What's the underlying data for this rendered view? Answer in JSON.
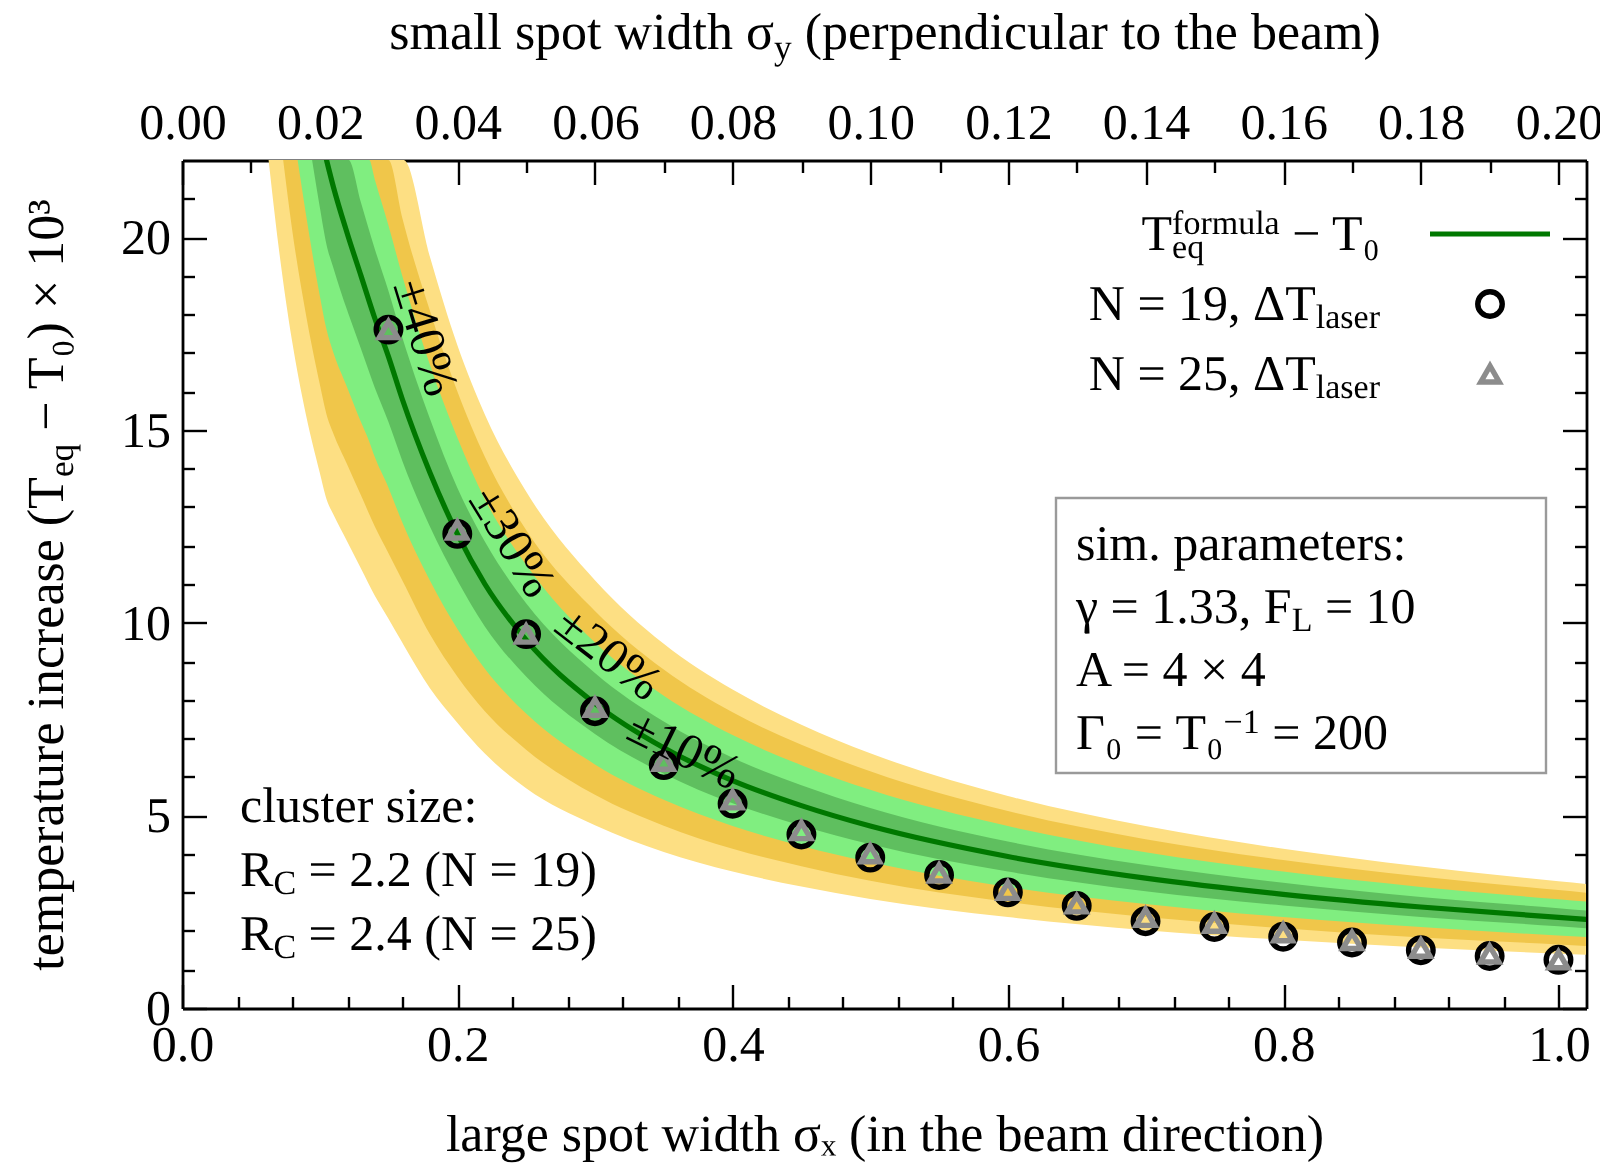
{
  "chart_data": {
    "type": "line",
    "xlabel": "large spot width σₓ (in the beam direction)",
    "x2label": "small spot width σ$_{y}$ (perpendicular to the beam)",
    "ylabel": "temperature increase (T$_{eq}$ − T₀) × 10³",
    "xlim": [
      0,
      1.02
    ],
    "ylim": [
      0,
      22
    ],
    "x2lim": [
      0,
      0.204
    ],
    "xticks": [
      {
        "value": 0,
        "label": "0.0"
      },
      {
        "value": 0.04,
        "label": null
      },
      {
        "value": 0.08,
        "label": null
      },
      {
        "value": 0.12,
        "label": null
      },
      {
        "value": 0.16,
        "label": null
      },
      0.2,
      {
        "value": 0.24,
        "label": null
      },
      {
        "value": 0.28,
        "label": null
      },
      {
        "value": 0.32,
        "label": null
      },
      {
        "value": 0.36,
        "label": null
      },
      0.4,
      {
        "value": 0.44,
        "label": null
      },
      {
        "value": 0.48,
        "label": null
      },
      {
        "value": 0.52,
        "label": null
      },
      {
        "value": 0.56,
        "label": null
      },
      0.6,
      {
        "value": 0.64,
        "label": null
      },
      {
        "value": 0.68,
        "label": null
      },
      {
        "value": 0.72,
        "label": null
      },
      {
        "value": 0.76,
        "label": null
      },
      0.8,
      {
        "value": 0.84,
        "label": null
      },
      {
        "value": 0.88,
        "label": null
      },
      {
        "value": 0.92,
        "label": null
      },
      {
        "value": 0.96,
        "label": null
      },
      {
        "value": 1,
        "label": "1.0"
      }
    ],
    "x2ticks": [
      {
        "value": 0,
        "label": "0.00"
      },
      {
        "value": 0.01,
        "label": null
      },
      0.02,
      {
        "value": 0.03,
        "label": null
      },
      0.04,
      {
        "value": 0.05,
        "label": null
      },
      0.06,
      {
        "value": 0.07,
        "label": null
      },
      0.08,
      {
        "value": 0.09,
        "label": null
      },
      {
        "value": 0.1,
        "label": "0.10"
      },
      {
        "value": 0.11,
        "label": null
      },
      0.12,
      {
        "value": 0.13,
        "label": null
      },
      0.14,
      {
        "value": 0.15,
        "label": null
      },
      0.16,
      {
        "value": 0.17,
        "label": null
      },
      0.18,
      {
        "value": 0.19,
        "label": null
      },
      {
        "value": 0.2,
        "label": "0.20"
      }
    ],
    "yticks": [
      0,
      {
        "value": 1,
        "label": null
      },
      {
        "value": 2,
        "label": null
      },
      {
        "value": 3,
        "label": null
      },
      {
        "value": 4,
        "label": null
      },
      5,
      {
        "value": 6,
        "label": null
      },
      {
        "value": 7,
        "label": null
      },
      {
        "value": 8,
        "label": null
      },
      {
        "value": 9,
        "label": null
      },
      10,
      {
        "value": 11,
        "label": null
      },
      {
        "value": 12,
        "label": null
      },
      {
        "value": 13,
        "label": null
      },
      {
        "value": 14,
        "label": null
      },
      15,
      {
        "value": 16,
        "label": null
      },
      {
        "value": 17,
        "label": null
      },
      {
        "value": 18,
        "label": null
      },
      {
        "value": 19,
        "label": null
      },
      20,
      {
        "value": 21,
        "label": null
      }
    ],
    "legend": "top right",
    "series": [
      {
        "color": "#fddf83",
        "x": [
          0.0629,
          0.07,
          0.08,
          0.09,
          0.1,
          0.105,
          0.11,
          0.12,
          0.13,
          0.14,
          0.15,
          0.16,
          0.161,
          0.18,
          0.2,
          0.22,
          0.25,
          0.3,
          0.35,
          0.4,
          0.45,
          0.5,
          0.6,
          0.7,
          0.8,
          0.9,
          1.0,
          1.02
        ],
        "values": [
          null,
          null,
          null,
          null,
          null,
          null,
          null,
          null,
          null,
          null,
          null,
          null,
          null,
          null,
          null,
          null,
          null,
          null,
          null,
          null,
          null,
          null,
          null,
          null,
          null,
          null,
          null,
          null
        ],
        "lower": [
          22.0,
          19.8,
          17.3,
          15.4,
          13.9,
          13.2,
          12.8,
          12.1,
          11.4,
          10.7,
          10.1,
          9.48,
          9.42,
          8.3,
          7.4,
          6.6,
          5.7,
          4.74,
          4.05,
          3.54,
          3.15,
          2.83,
          2.36,
          2.02,
          1.77,
          1.57,
          1.41,
          1.38
        ],
        "upper": [
          22,
          22,
          22,
          22,
          22,
          22,
          22,
          22,
          22,
          22,
          22,
          22,
          22,
          19.5,
          17.2,
          15.4,
          13.4,
          11.1,
          9.45,
          8.26,
          7.35,
          6.61,
          5.5,
          4.72,
          4.13,
          3.67,
          3.29,
          3.22
        ]
      },
      {
        "color": "#f0c64a",
        "x": [
          0.0735,
          0.08,
          0.09,
          0.1,
          0.105,
          0.11,
          0.12,
          0.13,
          0.14,
          0.15,
          0.16,
          0.18,
          0.2,
          0.22,
          0.25,
          0.3,
          0.35,
          0.4,
          0.45,
          0.5,
          0.6,
          0.7,
          0.8,
          0.9,
          1.0,
          1.02
        ],
        "values": [
          null,
          null,
          null,
          null,
          null,
          null,
          null,
          null,
          null,
          null,
          null,
          null,
          null,
          null,
          null,
          null,
          null,
          null,
          null,
          null,
          null,
          null,
          null,
          null,
          null,
          null
        ],
        "lower": [
          22.0,
          20.2,
          18.0,
          16.2,
          15.4,
          14.9,
          14.1,
          13.3,
          12.5,
          11.8,
          11.1,
          9.7,
          8.6,
          7.7,
          6.7,
          5.53,
          4.73,
          4.13,
          3.68,
          3.3,
          2.75,
          2.36,
          2.07,
          1.83,
          1.65,
          1.61
        ],
        "upper": [
          22,
          22,
          22,
          22,
          22,
          22,
          22,
          22,
          22,
          22,
          20.5,
          18.1,
          16.0,
          14.3,
          12.4,
          10.3,
          8.78,
          7.67,
          6.83,
          6.14,
          5.11,
          4.38,
          3.84,
          3.41,
          3.06,
          2.99
        ]
      },
      {
        "color": "#80ee80",
        "x": [
          0.084,
          0.09,
          0.1,
          0.105,
          0.11,
          0.12,
          0.13,
          0.136,
          0.14,
          0.15,
          0.16,
          0.18,
          0.2,
          0.22,
          0.25,
          0.3,
          0.35,
          0.4,
          0.45,
          0.5,
          0.6,
          0.7,
          0.8,
          0.9,
          1.0,
          1.02
        ],
        "values": [
          null,
          null,
          null,
          null,
          null,
          null,
          null,
          null,
          null,
          null,
          null,
          null,
          null,
          null,
          null,
          null,
          null,
          null,
          null,
          null,
          null,
          null,
          null,
          null,
          null,
          null
        ],
        "lower": [
          22.0,
          20.6,
          18.5,
          17.6,
          17.0,
          16.1,
          15.2,
          14.7,
          14.3,
          13.5,
          12.6,
          11.1,
          9.84,
          8.8,
          7.64,
          6.32,
          5.4,
          4.72,
          4.2,
          3.78,
          3.14,
          2.7,
          2.36,
          2.1,
          1.88,
          1.84
        ],
        "upper": [
          22,
          22,
          22,
          22,
          22,
          22,
          22,
          22,
          21.5,
          20.3,
          19.0,
          16.7,
          14.8,
          13.2,
          11.5,
          9.48,
          8.1,
          7.08,
          6.3,
          5.66,
          4.72,
          4.04,
          3.54,
          3.14,
          2.82,
          2.76
        ]
      },
      {
        "color": "#5fbf5f",
        "x": [
          0.0945,
          0.1,
          0.105,
          0.11,
          0.12,
          0.121,
          0.13,
          0.14,
          0.15,
          0.16,
          0.18,
          0.2,
          0.22,
          0.25,
          0.3,
          0.35,
          0.4,
          0.45,
          0.5,
          0.6,
          0.7,
          0.8,
          0.9,
          1.0,
          1.02
        ],
        "values": [
          null,
          null,
          null,
          null,
          null,
          null,
          null,
          null,
          null,
          null,
          null,
          null,
          null,
          null,
          null,
          null,
          null,
          null,
          null,
          null,
          null,
          null,
          null,
          null,
          null
        ],
        "lower": [
          22.0,
          20.8,
          19.8,
          19.2,
          18.1,
          18.0,
          17.1,
          16.1,
          15.2,
          14.2,
          12.5,
          11.1,
          9.9,
          8.6,
          7.11,
          6.08,
          5.31,
          4.73,
          4.25,
          3.54,
          3.03,
          2.66,
          2.36,
          2.12,
          2.07
        ],
        "upper": [
          22,
          22,
          22,
          22,
          22,
          22,
          20.9,
          19.7,
          18.6,
          17.4,
          15.3,
          13.5,
          12.1,
          10.5,
          8.69,
          7.43,
          6.49,
          5.78,
          5.19,
          4.32,
          3.71,
          3.25,
          2.88,
          2.59,
          2.53
        ]
      },
      {
        "name": "T$_{eq}$$^{formula}$ − T₀",
        "color": "#007800",
        "x": [
          0.105,
          0.11,
          0.12,
          0.13,
          0.14,
          0.15,
          0.16,
          0.18,
          0.2,
          0.22,
          0.25,
          0.3,
          0.35,
          0.4,
          0.45,
          0.5,
          0.6,
          0.7,
          0.8,
          0.9,
          1.0,
          1.02
        ],
        "values": [
          22.0,
          21.3,
          20.1,
          19.0,
          17.9,
          16.9,
          15.8,
          13.9,
          12.3,
          11.0,
          9.55,
          7.9,
          6.75,
          5.9,
          5.25,
          4.72,
          3.93,
          3.37,
          2.95,
          2.62,
          2.35,
          2.3
        ]
      },
      {
        "type": "scatter",
        "name": "N = 19, ΔT$_{laser}$",
        "color": "#000000",
        "marker": "circle",
        "x": [
          0.15,
          0.2,
          0.25,
          0.3,
          0.35,
          0.4,
          0.45,
          0.5,
          0.55,
          0.6,
          0.65,
          0.7,
          0.75,
          0.8,
          0.85,
          0.9,
          0.95,
          1.0
        ],
        "values": [
          17.6,
          12.3,
          9.7,
          7.7,
          6.3,
          5.3,
          4.5,
          3.9,
          3.45,
          3.0,
          2.65,
          2.25,
          2.1,
          1.85,
          1.7,
          1.5,
          1.35,
          1.25
        ]
      },
      {
        "type": "scatter",
        "name": "N = 25, ΔT$_{laser}$",
        "color": "#8c8c8c",
        "marker": "triangle",
        "x": [
          0.15,
          0.2,
          0.25,
          0.3,
          0.35,
          0.4,
          0.45,
          0.5,
          0.55,
          0.6,
          0.65,
          0.7,
          0.75,
          0.8,
          0.85,
          0.9,
          0.95,
          1.0
        ],
        "values": [
          17.6,
          12.4,
          9.7,
          7.8,
          6.4,
          5.4,
          4.6,
          4.0,
          3.5,
          3.05,
          2.7,
          2.35,
          2.2,
          1.95,
          1.75,
          1.55,
          1.4,
          1.25
        ]
      }
    ],
    "annotations": [
      {
        "text": "±40%",
        "x": 0.177,
        "y": 17.4
      },
      {
        "text": "±30%",
        "x": 0.24,
        "y": 12.1
      },
      {
        "text": "±20%",
        "x": 0.31,
        "y": 9.2
      },
      {
        "text": "±10%",
        "x": 0.365,
        "y": 6.7
      },
      "cluster size:\nR$_{C}$ = 2.2 (N = 19)\nR$_{C}$ = 2.4 (N = 25)",
      "sim. parameters:\nγ = 1.33, F$_{L}$ = 10\nA = 4 × 4\nΓ₀ = T₀$^{−1}$ = 200"
    ]
  }
}
